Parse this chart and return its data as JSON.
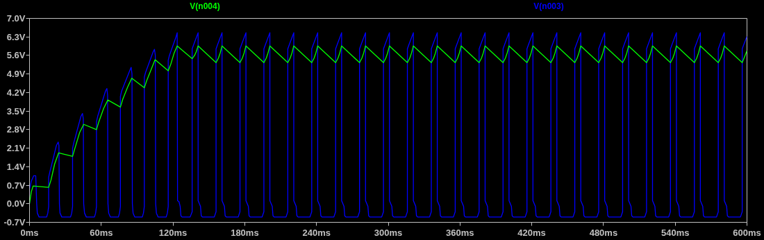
{
  "chart_data": {
    "type": "line",
    "xlim": [
      0,
      600
    ],
    "xticks": [
      {
        "value": 0,
        "label": "0ms"
      },
      {
        "value": 60,
        "label": "60ms"
      },
      {
        "value": 120,
        "label": "120ms"
      },
      {
        "value": 180,
        "label": "180ms"
      },
      {
        "value": 240,
        "label": "240ms"
      },
      {
        "value": 300,
        "label": "300ms"
      },
      {
        "value": 360,
        "label": "360ms"
      },
      {
        "value": 420,
        "label": "420ms"
      },
      {
        "value": 480,
        "label": "480ms"
      },
      {
        "value": 540,
        "label": "540ms"
      },
      {
        "value": 600,
        "label": "600ms"
      }
    ],
    "ylim": [
      -0.7,
      7.0
    ],
    "yticks": [
      {
        "value": -0.7,
        "label": "-0.7V"
      },
      {
        "value": 0,
        "label": "0.0V"
      },
      {
        "value": 0.7,
        "label": "0.7V"
      },
      {
        "value": 1.4,
        "label": "1.4V"
      },
      {
        "value": 2.1,
        "label": "2.1V"
      },
      {
        "value": 2.8,
        "label": "2.8V"
      },
      {
        "value": 3.5,
        "label": "3.5V"
      },
      {
        "value": 4.2,
        "label": "4.2V"
      },
      {
        "value": 4.9,
        "label": "4.9V"
      },
      {
        "value": 5.6,
        "label": "5.6V"
      },
      {
        "value": 6.3,
        "label": "6.3V"
      },
      {
        "value": 7.0,
        "label": "7.0V"
      }
    ],
    "grid": false,
    "line_style": "solid",
    "series": [
      {
        "name": "V(n003)",
        "color": "#0000ff",
        "x": [
          0,
          0,
          1.5,
          3.5,
          5.2,
          6,
          6.5,
          8,
          14.3,
          15.3,
          16,
          16,
          17,
          22.5,
          24,
          24.6,
          25,
          25.5,
          27,
          34.3,
          35.3,
          36,
          36,
          37,
          43,
          44.3,
          45,
          45.3,
          46,
          47.5,
          54.3,
          55.3,
          56,
          56,
          57,
          63.5,
          64.7,
          65.3,
          65.6,
          66.2,
          67.6,
          74.3,
          75.3,
          76,
          76,
          77,
          84,
          85,
          85.7,
          86,
          86.6,
          88,
          94.3,
          95.3,
          96,
          96,
          97,
          103.5,
          104.5,
          105.2,
          105.5,
          106.1,
          107.5,
          114.3,
          115.3,
          116,
          116,
          117,
          122.5,
          123.5,
          123.8,
          125,
          126,
          126.6,
          127.6,
          134.3,
          136,
          136,
          137.2,
          141,
          141,
          143,
          143.6,
          144.6,
          154.5,
          156,
          156,
          157.2,
          161,
          161,
          163,
          163.6,
          164.6,
          174.5,
          176,
          176,
          177.2,
          181,
          181,
          183,
          183.6,
          184.6,
          194.5,
          196,
          196,
          197.2,
          201,
          201,
          203,
          203.6,
          204.6,
          214.5,
          216,
          216,
          217.2,
          221,
          221,
          223,
          223.6,
          224.6,
          234.5,
          236,
          236,
          237.2,
          241,
          241,
          243,
          243.6,
          244.6,
          254.5,
          256,
          256,
          257.2,
          261,
          261,
          263,
          263.6,
          264.6,
          274.5,
          276,
          276,
          277.2,
          281,
          281,
          283,
          283.6,
          284.6,
          294.5,
          296,
          296,
          297.2,
          301,
          301,
          303,
          303.6,
          304.6,
          314.5,
          316,
          316,
          317.2,
          321,
          321,
          323,
          323.6,
          324.6,
          334.5,
          336,
          336,
          337.2,
          341,
          341,
          343,
          343.6,
          344.6,
          354.5,
          356,
          356,
          357.2,
          361,
          361,
          363,
          363.6,
          364.6,
          374.5,
          376,
          376,
          377.2,
          381,
          381,
          383,
          383.6,
          384.6,
          394.5,
          396,
          396,
          397.2,
          401,
          401,
          403,
          403.6,
          404.6,
          414.5,
          416,
          416,
          417.2,
          421,
          421,
          423,
          423.6,
          424.6,
          434.5,
          436,
          436,
          437.2,
          441,
          441,
          443,
          443.6,
          444.6,
          454.5,
          456,
          456,
          457.2,
          461,
          461,
          463,
          463.6,
          464.6,
          474.5,
          476,
          476,
          477.2,
          481,
          481,
          483,
          483.6,
          484.6,
          494.5,
          496,
          496,
          497.2,
          501,
          501,
          503,
          503.6,
          504.6,
          514.5,
          516,
          516,
          517.2,
          521,
          521,
          523,
          523.6,
          524.6,
          534.5,
          536,
          536,
          537.2,
          541,
          541,
          543,
          543.6,
          544.6,
          554.5,
          556,
          556,
          557.2,
          561,
          561,
          563,
          563.6,
          564.6,
          574.5,
          576,
          576,
          577.2,
          581,
          581,
          583,
          583.6,
          584.6,
          594.5,
          596,
          596,
          597.2,
          600
        ],
        "values": [
          0,
          0.55,
          0.85,
          1.06,
          1.06,
          0,
          -0.35,
          -0.5,
          -0.5,
          -0.35,
          -0.1,
          1.0,
          1.2,
          2.2,
          2.33,
          2.2,
          0,
          -0.35,
          -0.5,
          -0.5,
          -0.35,
          -0.1,
          2.1,
          2.3,
          3.3,
          3.41,
          3.2,
          0,
          -0.35,
          -0.5,
          -0.5,
          -0.35,
          -0.1,
          3.1,
          3.3,
          4.25,
          4.35,
          4.1,
          0,
          -0.35,
          -0.5,
          -0.5,
          -0.35,
          -0.1,
          4.05,
          4.25,
          5.05,
          5.15,
          4.9,
          0,
          -0.35,
          -0.5,
          -0.5,
          -0.35,
          -0.1,
          4.78,
          4.95,
          5.75,
          5.83,
          5.6,
          0,
          -0.35,
          -0.5,
          -0.5,
          -0.35,
          -0.1,
          5.42,
          5.6,
          6.3,
          6.46,
          0.12,
          0.08,
          -0.1,
          -0.45,
          -0.5,
          -0.5,
          -0.3,
          5.85,
          6.0,
          6.46,
          0.12,
          -0.1,
          -0.45,
          -0.5,
          -0.5,
          -0.3,
          5.85,
          6.0,
          6.46,
          0.12,
          -0.1,
          -0.45,
          -0.5,
          -0.5,
          -0.3,
          5.85,
          6.0,
          6.46,
          0.12,
          -0.1,
          -0.45,
          -0.5,
          -0.5,
          -0.3,
          5.85,
          6.0,
          6.46,
          0.12,
          -0.1,
          -0.45,
          -0.5,
          -0.5,
          -0.3,
          5.85,
          6.0,
          6.46,
          0.12,
          -0.1,
          -0.45,
          -0.5,
          -0.5,
          -0.3,
          5.85,
          6.0,
          6.46,
          0.12,
          -0.1,
          -0.45,
          -0.5,
          -0.5,
          -0.3,
          5.85,
          6.0,
          6.46,
          0.12,
          -0.1,
          -0.45,
          -0.5,
          -0.5,
          -0.3,
          5.85,
          6.0,
          6.46,
          0.12,
          -0.1,
          -0.45,
          -0.5,
          -0.5,
          -0.3,
          5.85,
          6.0,
          6.46,
          0.12,
          -0.1,
          -0.45,
          -0.5,
          -0.5,
          -0.3,
          5.85,
          6.0,
          6.46,
          0.12,
          -0.1,
          -0.45,
          -0.5,
          -0.5,
          -0.3,
          5.85,
          6.0,
          6.46,
          0.12,
          -0.1,
          -0.45,
          -0.5,
          -0.5,
          -0.3,
          5.85,
          6.0,
          6.46,
          0.12,
          -0.1,
          -0.45,
          -0.5,
          -0.5,
          -0.3,
          5.85,
          6.0,
          6.46,
          0.12,
          -0.1,
          -0.45,
          -0.5,
          -0.5,
          -0.3,
          5.85,
          6.0,
          6.46,
          0.12,
          -0.1,
          -0.45,
          -0.5,
          -0.5,
          -0.3,
          5.85,
          6.0,
          6.46,
          0.12,
          -0.1,
          -0.45,
          -0.5,
          -0.5,
          -0.3,
          5.85,
          6.0,
          6.46,
          0.12,
          -0.1,
          -0.45,
          -0.5,
          -0.5,
          -0.3,
          5.85,
          6.0,
          6.46,
          0.12,
          -0.1,
          -0.45,
          -0.5,
          -0.5,
          -0.3,
          5.85,
          6.0,
          6.46,
          0.12,
          -0.1,
          -0.45,
          -0.5,
          -0.5,
          -0.3,
          5.85,
          6.0,
          6.46,
          0.12,
          -0.1,
          -0.45,
          -0.5,
          -0.5,
          -0.3,
          5.85,
          6.0,
          6.46,
          0.12,
          -0.1,
          -0.45,
          -0.5,
          -0.5,
          -0.3,
          5.85,
          6.0,
          6.46,
          0.12,
          -0.1,
          -0.45,
          -0.5,
          -0.5,
          -0.3,
          5.85,
          6.0,
          6.46,
          0.12,
          -0.1,
          -0.45,
          -0.5,
          -0.5,
          -0.3,
          5.85,
          6.0,
          6.46,
          0.12,
          -0.1,
          -0.45,
          -0.5,
          -0.5,
          -0.3,
          5.85,
          6.0,
          6.32
        ]
      },
      {
        "name": "V(n004)",
        "color": "#00ff00",
        "x": [
          0,
          1.5,
          3,
          16,
          18,
          21,
          24.3,
          36,
          38,
          42,
          45.3,
          56,
          58,
          62,
          65.5,
          76,
          78,
          82,
          85.5,
          96,
          98,
          102,
          105,
          116,
          118,
          121,
          123.5,
          136,
          138,
          139.5,
          141,
          156,
          158,
          159.5,
          161,
          176,
          178,
          179.5,
          181,
          196,
          198,
          199.5,
          201,
          216,
          218,
          219.5,
          221,
          236,
          238,
          239.5,
          241,
          256,
          258,
          259.5,
          261,
          276,
          278,
          279.5,
          281,
          296,
          298,
          299.5,
          301,
          316,
          318,
          319.5,
          321,
          336,
          338,
          339.5,
          341,
          356,
          358,
          359.5,
          361,
          376,
          378,
          379.5,
          381,
          396,
          398,
          399.5,
          401,
          416,
          418,
          419.5,
          421,
          436,
          438,
          439.5,
          441,
          456,
          458,
          459.5,
          461,
          476,
          478,
          479.5,
          481,
          496,
          498,
          499.5,
          501,
          516,
          518,
          519.5,
          521,
          536,
          538,
          539.5,
          541,
          556,
          558,
          559.5,
          561,
          576,
          578,
          579.5,
          581,
          596,
          598,
          600
        ],
        "values": [
          0,
          0.45,
          0.67,
          0.62,
          0.9,
          1.5,
          1.92,
          1.79,
          2.1,
          2.7,
          3.0,
          2.8,
          3.1,
          3.6,
          3.92,
          3.65,
          3.95,
          4.4,
          4.74,
          4.38,
          4.65,
          5.1,
          5.44,
          5.02,
          5.25,
          5.7,
          5.96,
          5.48,
          5.6,
          5.75,
          5.96,
          5.33,
          5.5,
          5.7,
          5.96,
          5.33,
          5.5,
          5.7,
          5.96,
          5.33,
          5.5,
          5.7,
          5.96,
          5.33,
          5.5,
          5.7,
          5.96,
          5.33,
          5.5,
          5.7,
          5.96,
          5.33,
          5.5,
          5.7,
          5.96,
          5.33,
          5.5,
          5.7,
          5.96,
          5.33,
          5.5,
          5.7,
          5.96,
          5.33,
          5.5,
          5.7,
          5.96,
          5.33,
          5.5,
          5.7,
          5.96,
          5.33,
          5.5,
          5.7,
          5.96,
          5.33,
          5.5,
          5.7,
          5.96,
          5.33,
          5.5,
          5.7,
          5.96,
          5.33,
          5.5,
          5.7,
          5.96,
          5.33,
          5.5,
          5.7,
          5.96,
          5.33,
          5.5,
          5.7,
          5.96,
          5.33,
          5.5,
          5.7,
          5.96,
          5.33,
          5.5,
          5.7,
          5.96,
          5.33,
          5.5,
          5.7,
          5.96,
          5.33,
          5.5,
          5.7,
          5.96,
          5.33,
          5.5,
          5.7,
          5.96,
          5.33,
          5.5,
          5.7,
          5.96,
          5.33,
          5.55,
          5.78
        ]
      }
    ]
  }
}
